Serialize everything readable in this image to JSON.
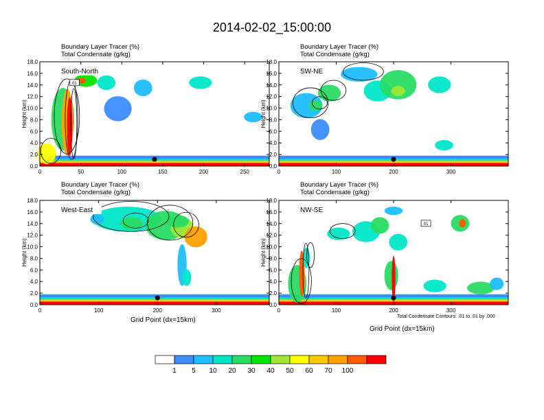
{
  "title": "2014-02-02_15:00:00",
  "subtitle_line1": "Boundary Layer Tracer   (%)",
  "subtitle_line2": "Total Condensate   (g/kg)",
  "y_axis_label": "Height (km)",
  "x_axis_label": "Grid Point (dx=15km)",
  "contour_note": "Total Condensate Contours: .01 to .01 by .000",
  "contour_box_label": ".01",
  "chart_data": [
    {
      "type": "heatmap",
      "panel": "South-North",
      "ylabel": "Height (km)",
      "xlabel": "",
      "xlim": [
        0,
        280
      ],
      "ylim": [
        0,
        18
      ],
      "x_ticks": [
        0,
        50,
        100,
        150,
        200,
        250
      ],
      "y_ticks": [
        "0.0",
        "2.0",
        "4.0",
        "6.0",
        "8.0",
        "10.0",
        "12.0",
        "14.0",
        "16.0",
        "18.0"
      ],
      "marker_x": 140,
      "series": [
        {
          "name": "Boundary Layer Tracer (%)"
        },
        {
          "name": "Total Condensate (g/kg) contour .01"
        }
      ]
    },
    {
      "type": "heatmap",
      "panel": "SW-NE",
      "ylabel": "Height (km)",
      "xlabel": "",
      "xlim": [
        0,
        400
      ],
      "ylim": [
        0,
        18
      ],
      "x_ticks": [
        0,
        100,
        200,
        300
      ],
      "y_ticks": [
        "0.0",
        "2.0",
        "4.0",
        "6.0",
        "8.0",
        "10.0",
        "12.0",
        "14.0",
        "16.0",
        "18.0"
      ],
      "marker_x": 200,
      "series": [
        {
          "name": "Boundary Layer Tracer (%)"
        },
        {
          "name": "Total Condensate (g/kg) contour .01"
        }
      ]
    },
    {
      "type": "heatmap",
      "panel": "West-East",
      "ylabel": "Height (km)",
      "xlabel": "Grid Point (dx=15km)",
      "xlim": [
        0,
        390
      ],
      "ylim": [
        0,
        18
      ],
      "x_ticks": [
        0,
        100,
        200,
        300
      ],
      "y_ticks": [
        "0.0",
        "2.0",
        "4.0",
        "6.0",
        "8.0",
        "10.0",
        "12.0",
        "14.0",
        "16.0",
        "18.0"
      ],
      "marker_x": 200,
      "series": [
        {
          "name": "Boundary Layer Tracer (%)"
        },
        {
          "name": "Total Condensate (g/kg) contour .01"
        }
      ]
    },
    {
      "type": "heatmap",
      "panel": "NW-SE",
      "ylabel": "Height (km)",
      "xlabel": "Grid Point (dx=15km)",
      "xlim": [
        0,
        400
      ],
      "ylim": [
        0,
        18
      ],
      "x_ticks": [
        0,
        100,
        200,
        300
      ],
      "y_ticks": [
        "0.0",
        "2.0",
        "4.0",
        "6.0",
        "8.0",
        "10.0",
        "12.0",
        "14.0",
        "16.0",
        "18.0"
      ],
      "marker_x": 200,
      "series": [
        {
          "name": "Boundary Layer Tracer (%)"
        },
        {
          "name": "Total Condensate (g/kg) contour .01"
        }
      ]
    }
  ],
  "colorbar": {
    "labels": [
      "1",
      "5",
      "10",
      "20",
      "30",
      "40",
      "50",
      "60",
      "70",
      "100"
    ],
    "colors": [
      "#ffffff",
      "#3c8cff",
      "#1ebeff",
      "#00e6c8",
      "#28dc64",
      "#00e600",
      "#a0e632",
      "#ffff00",
      "#ffc800",
      "#ffa000",
      "#ff5a00",
      "#ff0000"
    ]
  }
}
